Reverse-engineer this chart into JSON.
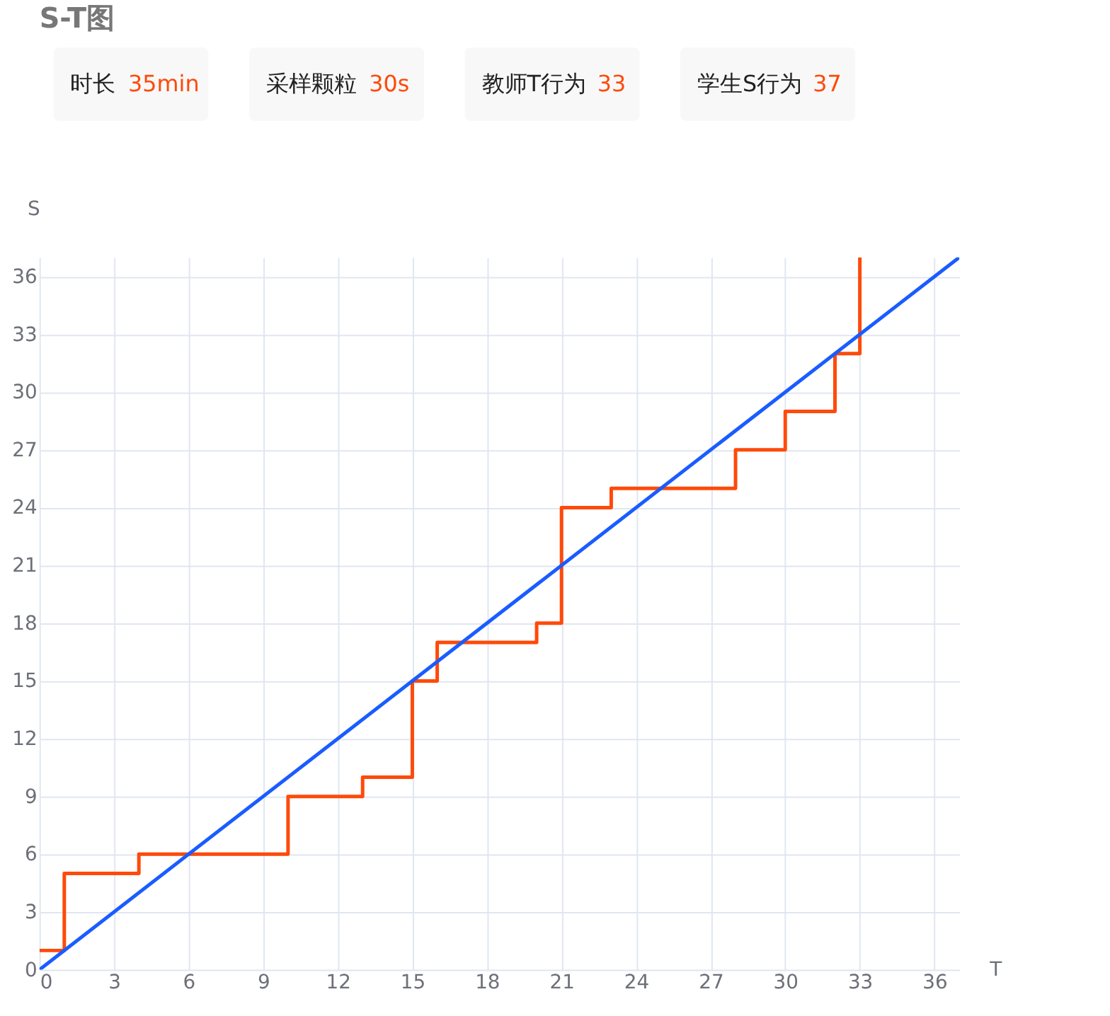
{
  "chart_data": {
    "type": "step",
    "title": "S-T图",
    "xlabel": "T",
    "ylabel": "S",
    "annotations": [
      "时长 35min",
      "采样颗粒 30s",
      "教师T行为 33",
      "学生S行为 37"
    ],
    "series": [
      {
        "type": "step",
        "color": "#fe4a0a",
        "x": [
          0,
          1,
          4,
          10,
          13,
          15,
          16,
          20,
          21,
          23,
          28,
          30,
          32,
          33
        ],
        "values": [
          1,
          5,
          6,
          9,
          10,
          15,
          17,
          18,
          24,
          25,
          27,
          29,
          32,
          37
        ]
      },
      {
        "type": "line",
        "color": "#1a5cff",
        "x": [
          0,
          37
        ],
        "values": [
          0,
          37
        ]
      }
    ],
    "xlim": [
      0,
      37
    ],
    "ylim": [
      0,
      37
    ],
    "xticks": [
      0,
      3,
      6,
      9,
      12,
      15,
      18,
      21,
      24,
      27,
      30,
      33,
      36
    ],
    "yticks": [
      0,
      3,
      6,
      9,
      12,
      15,
      18,
      21,
      24,
      27,
      30,
      33,
      36
    ],
    "grid": true,
    "legend": false
  }
}
